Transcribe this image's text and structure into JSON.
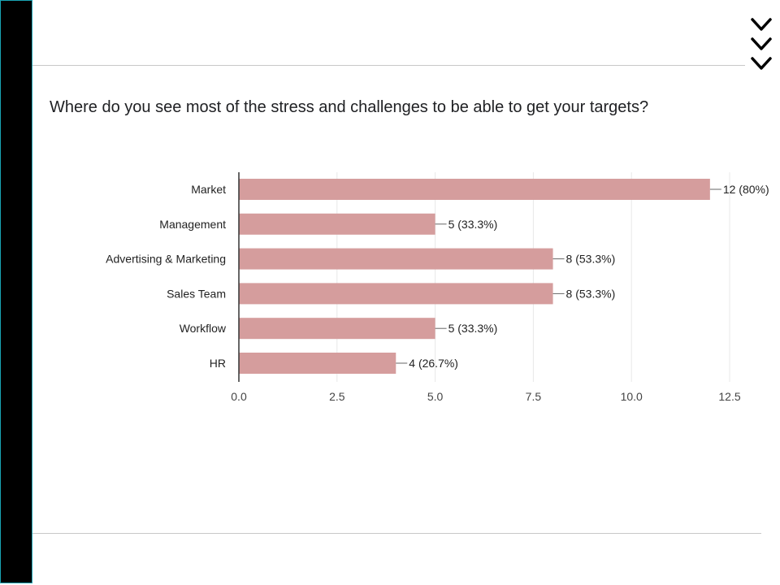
{
  "question": "Where do you see most of the stress and challenges to be able to get your targets?",
  "decor": {
    "chevron_icon": "chevron-down-icon",
    "chevron_count": 3
  },
  "colors": {
    "bar": "#d59d9d",
    "grid": "#e8e8e8",
    "axis": "#333333",
    "sidebar": "#000000",
    "sidebar_border": "#1aa3b3"
  },
  "chart_data": {
    "type": "bar",
    "orientation": "horizontal",
    "categories": [
      "Market",
      "Management",
      "Advertising & Marketing",
      "Sales Team",
      "Workflow",
      "HR"
    ],
    "values": [
      12,
      5,
      8,
      8,
      5,
      4
    ],
    "data_labels": [
      "12 (80%)",
      "5 (33.3%)",
      "8 (53.3%)",
      "8 (53.3%)",
      "5 (33.3%)",
      "4 (26.7%)"
    ],
    "xlim": [
      0,
      12.5
    ],
    "x_ticks": [
      "0.0",
      "2.5",
      "5.0",
      "7.5",
      "10.0",
      "12.5"
    ],
    "x_tick_values": [
      0,
      2.5,
      5,
      7.5,
      10,
      12.5
    ],
    "grid": true,
    "title": "",
    "xlabel": "",
    "ylabel": ""
  }
}
